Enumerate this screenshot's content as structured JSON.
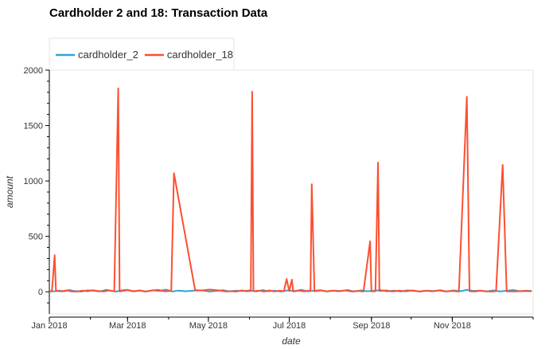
{
  "chart_data": {
    "type": "line",
    "title": "Cardholder 2 and 18: Transaction Data",
    "xlabel": "date",
    "ylabel": "amount",
    "xlim": [
      "2018-01-01",
      "2019-01-01"
    ],
    "ylim": [
      -200,
      2000
    ],
    "y_ticks": [
      0,
      500,
      1000,
      1500,
      2000
    ],
    "x_ticks": [
      {
        "date": "2018-01-01",
        "label": "Jan 2018"
      },
      {
        "date": "2018-03-01",
        "label": "Mar 2018"
      },
      {
        "date": "2018-05-01",
        "label": "May 2018"
      },
      {
        "date": "2018-07-01",
        "label": "Jul 2018"
      },
      {
        "date": "2018-09-01",
        "label": "Sep 2018"
      },
      {
        "date": "2018-11-01",
        "label": "Nov 2018"
      }
    ],
    "legend_position": "top-left",
    "grid": false,
    "series": [
      {
        "name": "cardholder_2",
        "color": "#30a2da",
        "points": [
          [
            "2018-01-01",
            2
          ],
          [
            "2018-01-05",
            5
          ],
          [
            "2018-01-08",
            11
          ],
          [
            "2018-01-12",
            4
          ],
          [
            "2018-01-16",
            16
          ],
          [
            "2018-01-20",
            6
          ],
          [
            "2018-01-25",
            2
          ],
          [
            "2018-01-30",
            13
          ],
          [
            "2018-02-03",
            9
          ],
          [
            "2018-02-08",
            3
          ],
          [
            "2018-02-13",
            18
          ],
          [
            "2018-02-17",
            8
          ],
          [
            "2018-02-20",
            1
          ],
          [
            "2018-02-24",
            12
          ],
          [
            "2018-03-01",
            17
          ],
          [
            "2018-03-06",
            4
          ],
          [
            "2018-03-10",
            10
          ],
          [
            "2018-03-15",
            2
          ],
          [
            "2018-03-20",
            14
          ],
          [
            "2018-03-25",
            7
          ],
          [
            "2018-03-30",
            19
          ],
          [
            "2018-04-04",
            3
          ],
          [
            "2018-04-08",
            11
          ],
          [
            "2018-04-14",
            5
          ],
          [
            "2018-04-20",
            10
          ],
          [
            "2018-04-26",
            13
          ],
          [
            "2018-05-02",
            2
          ],
          [
            "2018-05-07",
            8
          ],
          [
            "2018-05-12",
            14
          ],
          [
            "2018-05-17",
            4
          ],
          [
            "2018-05-22",
            10
          ],
          [
            "2018-05-27",
            6
          ],
          [
            "2018-06-01",
            12
          ],
          [
            "2018-06-06",
            3
          ],
          [
            "2018-06-11",
            15
          ],
          [
            "2018-06-15",
            5
          ],
          [
            "2018-06-20",
            9
          ],
          [
            "2018-06-25",
            2
          ],
          [
            "2018-06-30",
            13
          ],
          [
            "2018-07-05",
            6
          ],
          [
            "2018-07-10",
            18
          ],
          [
            "2018-07-15",
            4
          ],
          [
            "2018-07-20",
            10
          ],
          [
            "2018-07-25",
            14
          ],
          [
            "2018-07-30",
            3
          ],
          [
            "2018-08-04",
            11
          ],
          [
            "2018-08-09",
            7
          ],
          [
            "2018-08-14",
            16
          ],
          [
            "2018-08-19",
            2
          ],
          [
            "2018-08-24",
            12
          ],
          [
            "2018-08-29",
            5
          ],
          [
            "2018-09-03",
            9
          ],
          [
            "2018-09-08",
            15
          ],
          [
            "2018-09-13",
            4
          ],
          [
            "2018-09-18",
            11
          ],
          [
            "2018-09-23",
            3
          ],
          [
            "2018-09-28",
            13
          ],
          [
            "2018-10-03",
            8
          ],
          [
            "2018-10-08",
            2
          ],
          [
            "2018-10-13",
            10
          ],
          [
            "2018-10-18",
            6
          ],
          [
            "2018-10-23",
            14
          ],
          [
            "2018-10-28",
            3
          ],
          [
            "2018-11-02",
            12
          ],
          [
            "2018-11-07",
            5
          ],
          [
            "2018-11-12",
            17
          ],
          [
            "2018-11-17",
            8
          ],
          [
            "2018-11-22",
            11
          ],
          [
            "2018-11-27",
            4
          ],
          [
            "2018-12-02",
            12
          ],
          [
            "2018-12-07",
            3
          ],
          [
            "2018-12-12",
            9
          ],
          [
            "2018-12-17",
            16
          ],
          [
            "2018-12-22",
            5
          ],
          [
            "2018-12-27",
            10
          ],
          [
            "2018-12-31",
            6
          ]
        ]
      },
      {
        "name": "cardholder_18",
        "color": "#fc4f30",
        "points": [
          [
            "2018-01-01",
            2
          ],
          [
            "2018-01-03",
            10
          ],
          [
            "2018-01-05",
            330
          ],
          [
            "2018-01-06",
            8
          ],
          [
            "2018-01-10",
            4
          ],
          [
            "2018-01-14",
            12
          ],
          [
            "2018-01-18",
            3
          ],
          [
            "2018-01-22",
            2
          ],
          [
            "2018-01-26",
            11
          ],
          [
            "2018-01-30",
            5
          ],
          [
            "2018-02-03",
            14
          ],
          [
            "2018-02-07",
            6
          ],
          [
            "2018-02-11",
            3
          ],
          [
            "2018-02-15",
            12
          ],
          [
            "2018-02-19",
            5
          ],
          [
            "2018-02-22",
            1835
          ],
          [
            "2018-02-23",
            3
          ],
          [
            "2018-02-26",
            9
          ],
          [
            "2018-03-01",
            15
          ],
          [
            "2018-03-05",
            4
          ],
          [
            "2018-03-10",
            12
          ],
          [
            "2018-03-14",
            2
          ],
          [
            "2018-03-19",
            10
          ],
          [
            "2018-03-24",
            17
          ],
          [
            "2018-03-29",
            4
          ],
          [
            "2018-04-03",
            8
          ],
          [
            "2018-04-05",
            1070
          ],
          [
            "2018-04-21",
            15
          ],
          [
            "2018-04-26",
            12
          ],
          [
            "2018-05-02",
            20
          ],
          [
            "2018-05-10",
            10
          ],
          [
            "2018-05-14",
            3
          ],
          [
            "2018-05-18",
            5
          ],
          [
            "2018-05-22",
            2
          ],
          [
            "2018-05-26",
            12
          ],
          [
            "2018-05-30",
            4
          ],
          [
            "2018-06-02",
            8
          ],
          [
            "2018-06-03",
            1805
          ],
          [
            "2018-06-04",
            5
          ],
          [
            "2018-06-08",
            10
          ],
          [
            "2018-06-12",
            2
          ],
          [
            "2018-06-16",
            12
          ],
          [
            "2018-06-20",
            3
          ],
          [
            "2018-06-24",
            11
          ],
          [
            "2018-06-27",
            5
          ],
          [
            "2018-06-29",
            115
          ],
          [
            "2018-07-01",
            6
          ],
          [
            "2018-07-03",
            110
          ],
          [
            "2018-07-04",
            2
          ],
          [
            "2018-07-08",
            10
          ],
          [
            "2018-07-12",
            4
          ],
          [
            "2018-07-17",
            12
          ],
          [
            "2018-07-18",
            970
          ],
          [
            "2018-07-20",
            5
          ],
          [
            "2018-07-25",
            12
          ],
          [
            "2018-07-29",
            3
          ],
          [
            "2018-08-02",
            10
          ],
          [
            "2018-08-07",
            5
          ],
          [
            "2018-08-12",
            12
          ],
          [
            "2018-08-17",
            3
          ],
          [
            "2018-08-22",
            8
          ],
          [
            "2018-08-26",
            2
          ],
          [
            "2018-08-31",
            455
          ],
          [
            "2018-09-01",
            4
          ],
          [
            "2018-09-04",
            5
          ],
          [
            "2018-09-06",
            1165
          ],
          [
            "2018-09-07",
            6
          ],
          [
            "2018-09-12",
            12
          ],
          [
            "2018-09-17",
            3
          ],
          [
            "2018-09-22",
            10
          ],
          [
            "2018-09-27",
            4
          ],
          [
            "2018-10-02",
            12
          ],
          [
            "2018-10-07",
            3
          ],
          [
            "2018-10-12",
            9
          ],
          [
            "2018-10-17",
            4
          ],
          [
            "2018-10-22",
            12
          ],
          [
            "2018-10-27",
            3
          ],
          [
            "2018-11-01",
            8
          ],
          [
            "2018-11-06",
            2
          ],
          [
            "2018-11-12",
            1760
          ],
          [
            "2018-11-14",
            5
          ],
          [
            "2018-11-18",
            2
          ],
          [
            "2018-11-22",
            11
          ],
          [
            "2018-11-26",
            4
          ],
          [
            "2018-12-01",
            2
          ],
          [
            "2018-12-04",
            6
          ],
          [
            "2018-12-09",
            1145
          ],
          [
            "2018-12-12",
            4
          ],
          [
            "2018-12-18",
            3
          ],
          [
            "2018-12-24",
            6
          ],
          [
            "2018-12-31",
            5
          ]
        ]
      }
    ]
  }
}
